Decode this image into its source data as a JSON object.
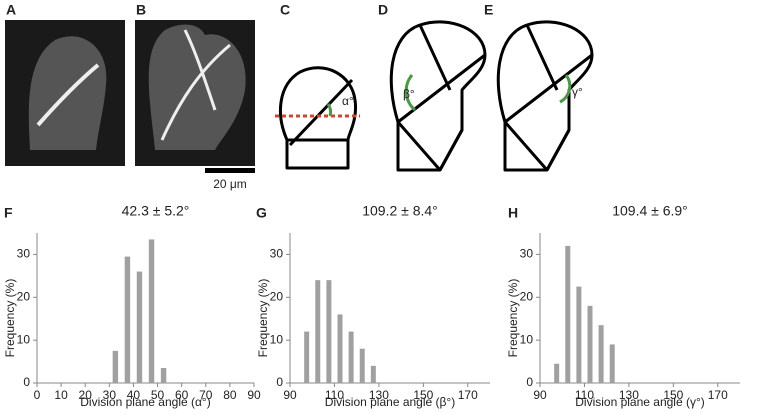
{
  "panels": {
    "letters": [
      "A",
      "B",
      "C",
      "D",
      "E",
      "F",
      "G",
      "H"
    ],
    "scale_bar": "20 μm",
    "angles": [
      "α°",
      "β°",
      "γ°"
    ]
  },
  "chart_data": [
    {
      "type": "histogram",
      "title": "42.3 ± 5.2°",
      "x_label": "Division plane angle (α°)",
      "y_label": "Frequency (%)",
      "bins": [
        30,
        35,
        40,
        45,
        50,
        55
      ],
      "values": [
        7.5,
        29.5,
        26,
        33.5,
        3.5
      ],
      "color": "#a0a0a0",
      "xlim": [
        0,
        90
      ],
      "xticks": [
        0,
        10,
        20,
        30,
        40,
        50,
        60,
        70,
        80,
        90
      ],
      "ylim": [
        0,
        35
      ],
      "yticks": [
        0,
        10,
        20,
        30
      ]
    },
    {
      "type": "histogram",
      "title": "109.2 ± 8.4°",
      "x_label": "Division plane angle (β°)",
      "y_label": "Frequency (%)",
      "bins": [
        95,
        100,
        105,
        110,
        115,
        120,
        125,
        130
      ],
      "values": [
        12,
        24,
        24,
        16,
        12,
        8,
        4
      ],
      "color": "#a0a0a0",
      "xlim": [
        90,
        180
      ],
      "xticks": [
        90,
        110,
        130,
        150,
        170
      ],
      "ylim": [
        0,
        35
      ],
      "yticks": [
        0,
        10,
        20,
        30
      ]
    },
    {
      "type": "histogram",
      "title": "109.4 ± 6.9°",
      "x_label": "Division plane angle (γ°)",
      "y_label": "Frequency (%)",
      "bins": [
        95,
        100,
        105,
        110,
        115,
        120,
        125
      ],
      "values": [
        4.5,
        32,
        22.5,
        18,
        13.5,
        9
      ],
      "color": "#a0a0a0",
      "xlim": [
        90,
        180
      ],
      "xticks": [
        90,
        110,
        130,
        150,
        170
      ],
      "ylim": [
        0,
        35
      ],
      "yticks": [
        0,
        10,
        20,
        30
      ]
    }
  ]
}
